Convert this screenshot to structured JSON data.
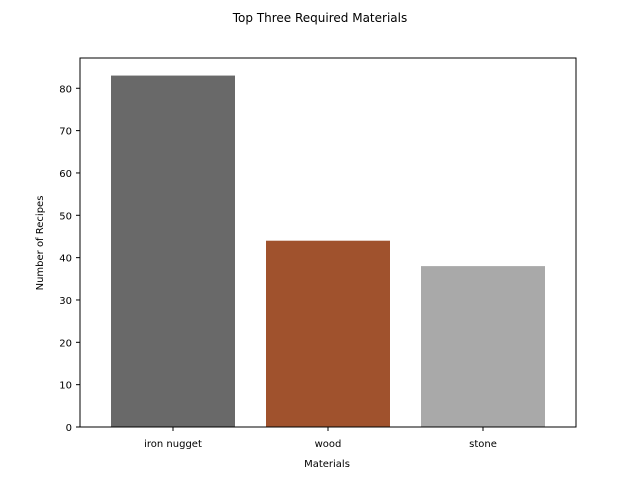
{
  "chart_data": {
    "type": "bar",
    "title": "Top Three Required Materials",
    "xlabel": "Materials",
    "ylabel": "Number of Recipes",
    "categories": [
      "iron nugget",
      "wood",
      "stone"
    ],
    "values": [
      83,
      44,
      38
    ],
    "colors": [
      "#696969",
      "#a0522d",
      "#a9a9a9"
    ],
    "ylim": [
      0,
      87.15
    ],
    "yticks": [
      0,
      10,
      20,
      30,
      40,
      50,
      60,
      70,
      80
    ],
    "grid": false,
    "legend": false
  }
}
